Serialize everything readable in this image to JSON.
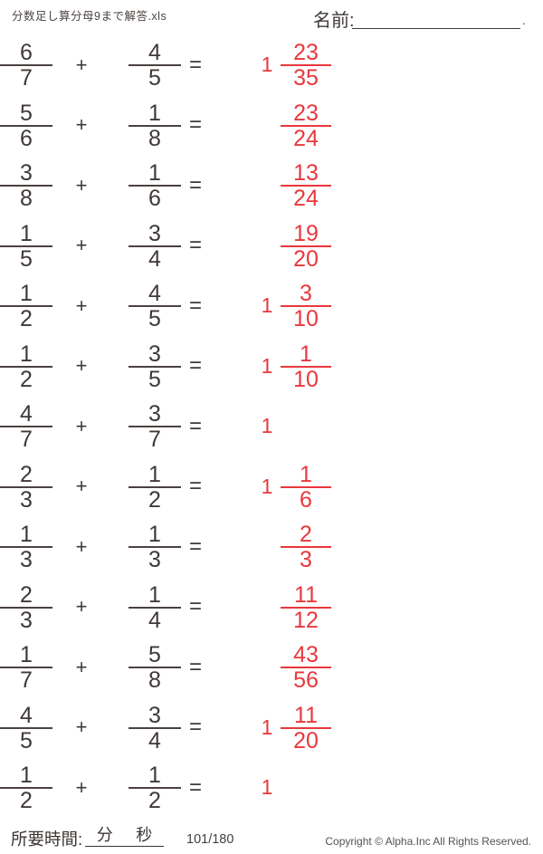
{
  "page": {
    "title": "分数足し算分母9まで解答.xls",
    "name_label": "名前:",
    "name_line_end": "."
  },
  "colors": {
    "ink": "#3f3937",
    "answer_red": "#e8383d"
  },
  "problems": [
    {
      "a_num": "6",
      "a_den": "7",
      "op": "+",
      "b_num": "4",
      "b_den": "5",
      "eq": "=",
      "ans_whole": "1",
      "ans_num": "23",
      "ans_den": "35"
    },
    {
      "a_num": "5",
      "a_den": "6",
      "op": "+",
      "b_num": "1",
      "b_den": "8",
      "eq": "=",
      "ans_whole": "",
      "ans_num": "23",
      "ans_den": "24"
    },
    {
      "a_num": "3",
      "a_den": "8",
      "op": "+",
      "b_num": "1",
      "b_den": "6",
      "eq": "=",
      "ans_whole": "",
      "ans_num": "13",
      "ans_den": "24"
    },
    {
      "a_num": "1",
      "a_den": "5",
      "op": "+",
      "b_num": "3",
      "b_den": "4",
      "eq": "=",
      "ans_whole": "",
      "ans_num": "19",
      "ans_den": "20"
    },
    {
      "a_num": "1",
      "a_den": "2",
      "op": "+",
      "b_num": "4",
      "b_den": "5",
      "eq": "=",
      "ans_whole": "1",
      "ans_num": "3",
      "ans_den": "10"
    },
    {
      "a_num": "1",
      "a_den": "2",
      "op": "+",
      "b_num": "3",
      "b_den": "5",
      "eq": "=",
      "ans_whole": "1",
      "ans_num": "1",
      "ans_den": "10"
    },
    {
      "a_num": "4",
      "a_den": "7",
      "op": "+",
      "b_num": "3",
      "b_den": "7",
      "eq": "=",
      "ans_whole": "1",
      "ans_num": "",
      "ans_den": ""
    },
    {
      "a_num": "2",
      "a_den": "3",
      "op": "+",
      "b_num": "1",
      "b_den": "2",
      "eq": "=",
      "ans_whole": "1",
      "ans_num": "1",
      "ans_den": "6"
    },
    {
      "a_num": "1",
      "a_den": "3",
      "op": "+",
      "b_num": "1",
      "b_den": "3",
      "eq": "=",
      "ans_whole": "",
      "ans_num": "2",
      "ans_den": "3"
    },
    {
      "a_num": "2",
      "a_den": "3",
      "op": "+",
      "b_num": "1",
      "b_den": "4",
      "eq": "=",
      "ans_whole": "",
      "ans_num": "11",
      "ans_den": "12"
    },
    {
      "a_num": "1",
      "a_den": "7",
      "op": "+",
      "b_num": "5",
      "b_den": "8",
      "eq": "=",
      "ans_whole": "",
      "ans_num": "43",
      "ans_den": "56"
    },
    {
      "a_num": "4",
      "a_den": "5",
      "op": "+",
      "b_num": "3",
      "b_den": "4",
      "eq": "=",
      "ans_whole": "1",
      "ans_num": "11",
      "ans_den": "20"
    },
    {
      "a_num": "1",
      "a_den": "2",
      "op": "+",
      "b_num": "1",
      "b_den": "2",
      "eq": "=",
      "ans_whole": "1",
      "ans_num": "",
      "ans_den": ""
    }
  ],
  "footer": {
    "time_label": "所要時間:",
    "minutes_label": "分",
    "seconds_label": "秒",
    "page_number": "101/180",
    "copyright": "Copyright ©  Alpha.Inc All Rights Reserved."
  }
}
